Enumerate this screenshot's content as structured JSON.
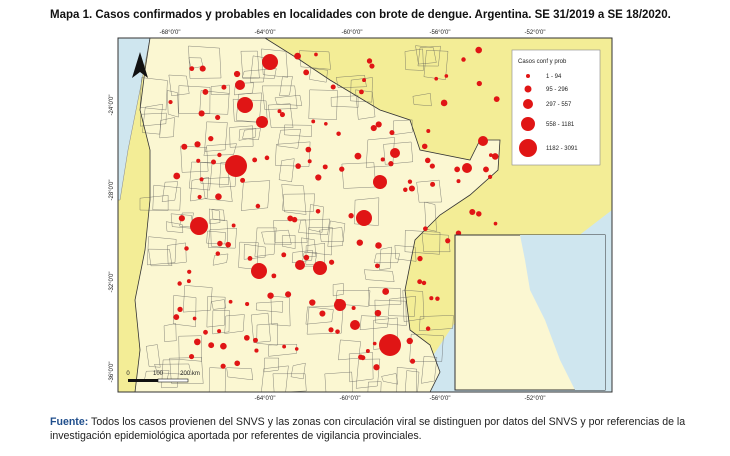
{
  "title": "Mapa 1. Casos confirmados y probables en localidades con brote de dengue. Argentina. SE 31/2019 a SE 18/2020.",
  "coordinates": {
    "top": [
      "-68°0'0\"",
      "-64°0'0\"",
      "-60°0'0\"",
      "-56°0'0\"",
      "-52°0'0\""
    ],
    "bottom": [
      "-64°0'0\"",
      "-60°0'0\"",
      "-56°0'0\"",
      "-52°0'0\""
    ],
    "left": [
      "-24°0'0\"",
      "-28°0'0\"",
      "-32°0'0\"",
      "-36°0'0\""
    ]
  },
  "legend": {
    "title": "Casos conf y prob",
    "items": [
      "1 - 94",
      "95 - 296",
      "297 - 557",
      "558 - 1181",
      "1182 - 3091"
    ]
  },
  "scale_bar": [
    "0",
    "100",
    "200 km"
  ],
  "footnote": {
    "label": "Fuente:",
    "text": "Todos los casos provienen del SNVS y las zonas con circulación viral se distinguen por datos del SNVS y por referencias de la investigación epidemiológica aportada por referentes de vigilancia provinciales."
  }
}
